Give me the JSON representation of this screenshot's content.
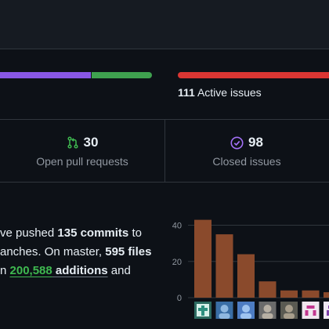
{
  "progress": {
    "merged_fraction": 0.62,
    "open_fraction": 0.38
  },
  "issues": {
    "active_count": "111",
    "active_label": "Active issues"
  },
  "stats": {
    "open_pr_count": "30",
    "open_pr_label": "Open pull requests",
    "closed_issues_count": "98",
    "closed_issues_label": "Closed issues"
  },
  "summary": {
    "line1_pre": "ve pushed ",
    "line1_bold": "135 commits",
    "line1_post": " to",
    "line2_pre": "anches. On master, ",
    "line2_bold": "595 files",
    "line3_pre": "n ",
    "line3_green": "200,588",
    "line3_bold": " additions",
    "line3_post": " and"
  },
  "colors": {
    "background": "#0d1117",
    "purple": "#8957e5",
    "green": "#3fa14f",
    "red": "#da3633",
    "bar": "#8a4a2c"
  },
  "chart_data": {
    "type": "bar",
    "values": [
      43,
      35,
      24,
      9,
      4,
      4,
      3
    ],
    "ylim": [
      0,
      45
    ],
    "yticks": [
      "0",
      "20",
      "40"
    ],
    "avatar_icons": [
      "avatar-teal-cross",
      "avatar-blue-person",
      "avatar-blue-person-2",
      "avatar-photo",
      "avatar-photo-2",
      "avatar-pink-pattern",
      "avatar-purple-pattern"
    ]
  }
}
